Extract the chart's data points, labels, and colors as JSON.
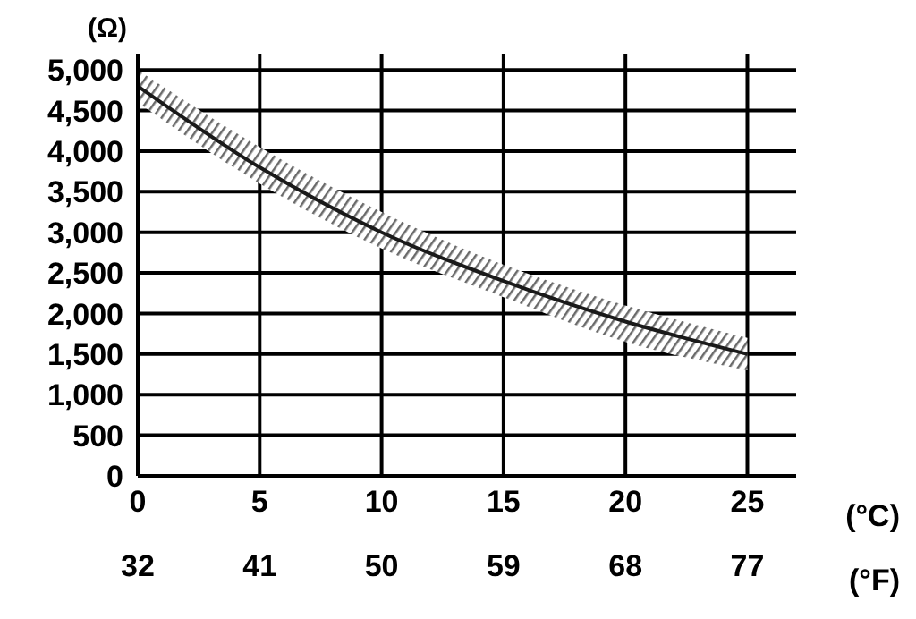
{
  "chart_data": {
    "type": "line",
    "ylabel": "(Ω)",
    "xlabel": "(°C)",
    "x2label": "(°F)",
    "x": [
      0,
      5,
      10,
      15,
      20,
      25
    ],
    "series": [
      {
        "color": "#1a1a1a",
        "values": [
          4800,
          3800,
          3000,
          2400,
          1900,
          1500
        ],
        "lower": [
          4600,
          3600,
          2800,
          2200,
          1650,
          1300
        ],
        "upper": [
          5000,
          4050,
          3250,
          2600,
          2100,
          1700
        ]
      }
    ],
    "xlim": [
      0,
      27
    ],
    "xticks": [
      0,
      5,
      10,
      15,
      20,
      25
    ],
    "x2lim": [
      32,
      80.6
    ],
    "x2ticks": [
      32,
      41,
      50,
      59,
      68,
      77
    ],
    "ylim": [
      0,
      5200
    ],
    "yticks": [
      0,
      500,
      {
        "value": 1000,
        "label": "1,000"
      },
      {
        "value": 1500,
        "label": "1,500"
      },
      {
        "value": 2000,
        "label": "2,000"
      },
      {
        "value": 2500,
        "label": "2,500"
      },
      {
        "value": 3000,
        "label": "3,000"
      },
      {
        "value": 3500,
        "label": "3,500"
      },
      {
        "value": 4000,
        "label": "4,000"
      },
      {
        "value": 4500,
        "label": "4,500"
      },
      {
        "value": 5000,
        "label": "5,000"
      }
    ],
    "grid": true
  }
}
